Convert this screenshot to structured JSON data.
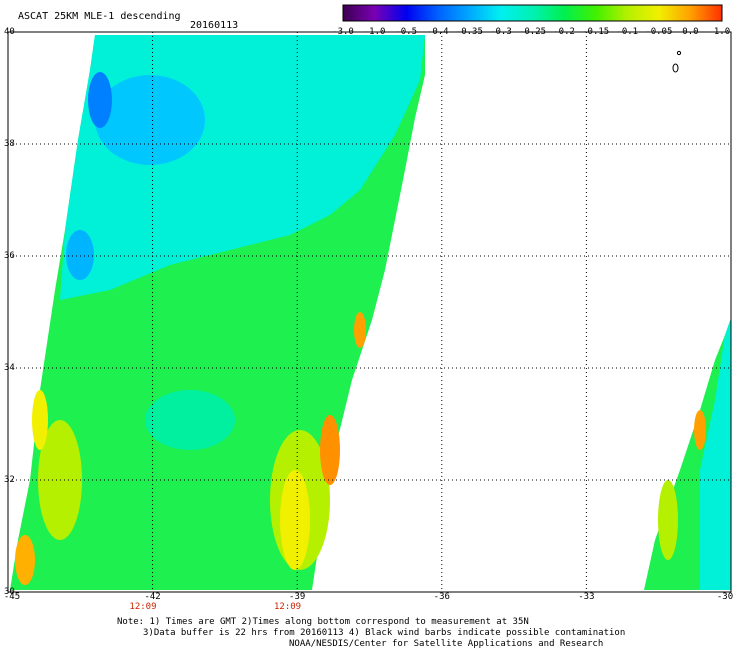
{
  "header": {
    "title": "ASCAT 25KM MLE-1 descending",
    "date": "20160113"
  },
  "colorbar": {
    "labels": [
      "-3.0",
      "-1.0",
      "-0.5",
      "-0.4",
      "-0.35",
      "-0.3",
      "-0.25",
      "-0.2",
      "-0.15",
      "-0.1",
      "-0.05",
      "0.0",
      "1.0"
    ],
    "colors": [
      "#3c0050",
      "#7a00b4",
      "#0000f0",
      "#0060ff",
      "#00a8ff",
      "#00f0f0",
      "#00f0b4",
      "#00f050",
      "#40f000",
      "#b4f000",
      "#f0f000",
      "#ffa000",
      "#ff3000"
    ]
  },
  "map": {
    "lon_range": [
      -45,
      -30
    ],
    "lat_range": [
      30,
      40
    ],
    "lon_ticks": [
      {
        "value": -45,
        "label": "-45"
      },
      {
        "value": -42,
        "label": "-42"
      },
      {
        "value": -39,
        "label": "-39"
      },
      {
        "value": -36,
        "label": "-36"
      },
      {
        "value": -33,
        "label": "-33"
      },
      {
        "value": -30,
        "label": "-30"
      }
    ],
    "lat_ticks": [
      {
        "value": 40,
        "label": "40"
      },
      {
        "value": 38,
        "label": "38"
      },
      {
        "value": 36,
        "label": "36"
      },
      {
        "value": 34,
        "label": "34"
      },
      {
        "value": 32,
        "label": "32"
      },
      {
        "value": 30,
        "label": "30"
      }
    ],
    "pass_times": [
      {
        "lon": -42.2,
        "label": "12:09"
      },
      {
        "lon": -39.2,
        "label": "12:09"
      }
    ],
    "grid": "dotted"
  },
  "notes": {
    "line1": "Note: 1) Times are GMT 2)Times along bottom correspond to measurement at 35N",
    "line2": "3)Data buffer is 22 hrs from 20160113 4) Black wind barbs indicate possible contamination",
    "line3": "NOAA/NESDIS/Center for Satellite Applications and Research"
  }
}
